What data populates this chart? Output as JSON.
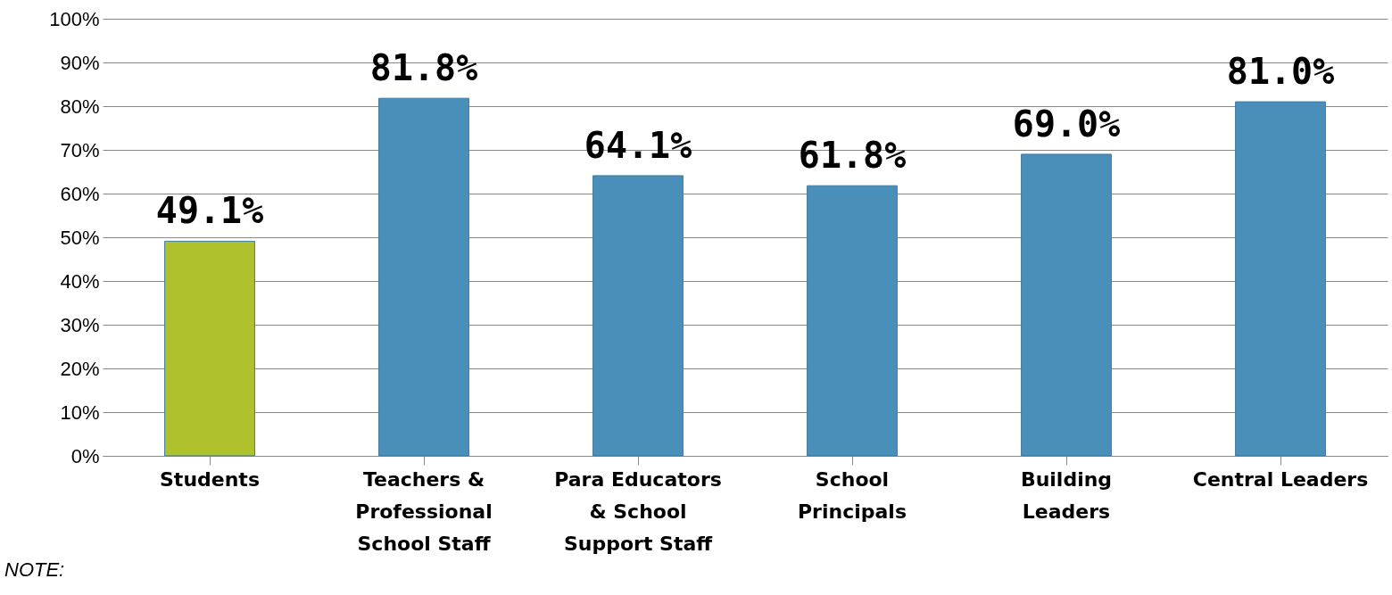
{
  "chart_data": {
    "type": "bar",
    "categories": [
      "Students",
      "Teachers & Professional School Staff",
      "Para Educators & School Support Staff",
      "School Principals",
      "Building Leaders",
      "Central Leaders"
    ],
    "values": [
      49.1,
      81.8,
      64.1,
      61.8,
      69.0,
      81.0
    ],
    "colors": [
      "#afc22d",
      "#4a8fba",
      "#4a8fba",
      "#4a8fba",
      "#4a8fba",
      "#4a8fba"
    ],
    "value_labels": [
      "49.1%",
      "81.8%",
      "64.1%",
      "61.8%",
      "69.0%",
      "81.0%"
    ],
    "ylim": [
      0,
      100
    ],
    "yticks": [
      {
        "value": 0,
        "label": "0%"
      },
      {
        "value": 10,
        "label": "10%"
      },
      {
        "value": 20,
        "label": "20%"
      },
      {
        "value": 30,
        "label": "30%"
      },
      {
        "value": 40,
        "label": "40%"
      },
      {
        "value": 50,
        "label": "50%"
      },
      {
        "value": 60,
        "label": "60%"
      },
      {
        "value": 70,
        "label": "70%"
      },
      {
        "value": 80,
        "label": "80%"
      },
      {
        "value": 90,
        "label": "90%"
      },
      {
        "value": 100,
        "label": "100%"
      }
    ],
    "grid": "y",
    "annotations": [
      "NOTE:"
    ]
  }
}
